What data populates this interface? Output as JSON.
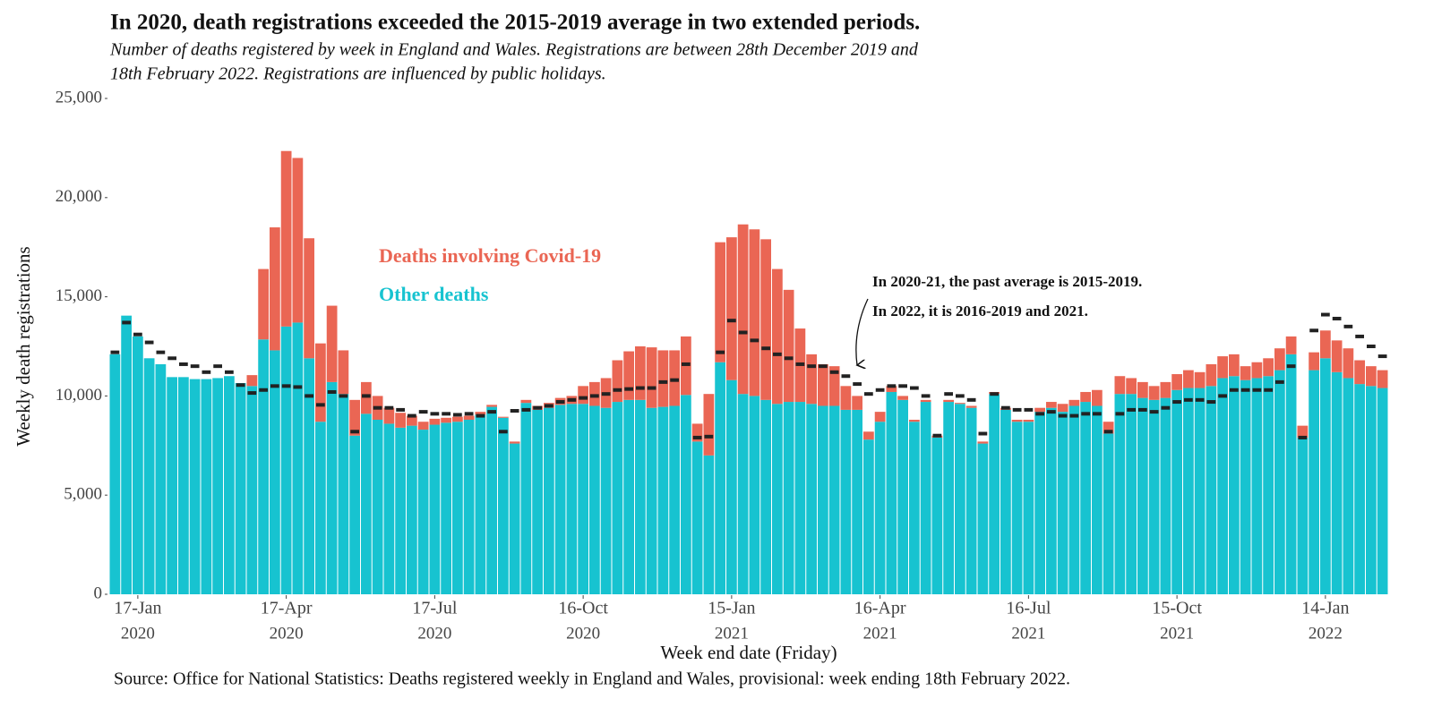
{
  "chart_data": {
    "type": "stacked-bar",
    "title": "In 2020, death registrations exceeded the 2015-2019 average in two extended periods.",
    "subtitle": [
      "Number of deaths registered by week in England and Wales. Registrations are between 28th December 2019 and",
      "18th February 2022. Registrations are influenced by public holidays."
    ],
    "y_label": "Weekly death registrations",
    "x_label": "Week end date (Friday)",
    "source": "Source: Office for National Statistics: Deaths registered weekly in England and Wales, provisional: week ending 18th February 2022.",
    "annotation": [
      "In 2020-21, the past average is 2015-2019.",
      "In 2022, it is 2016-2019 and 2021."
    ],
    "ylim": [
      0,
      25000
    ],
    "yticks": [
      0,
      {
        "value": 5000,
        "label": "5,000"
      },
      {
        "value": 10000,
        "label": "10,000"
      },
      {
        "value": 15000,
        "label": "15,000"
      },
      {
        "value": 20000,
        "label": "20,000"
      },
      {
        "value": 25000,
        "label": "25,000"
      }
    ],
    "xticks": [
      {
        "value": "2020-01-17",
        "label": [
          "17-Jan",
          "2020"
        ]
      },
      {
        "value": "2020-04-17",
        "label": [
          "17-Apr",
          "2020"
        ]
      },
      {
        "value": "2020-07-17",
        "label": [
          "17-Jul",
          "2020"
        ]
      },
      {
        "value": "2020-10-16",
        "label": [
          "16-Oct",
          "2020"
        ]
      },
      {
        "value": "2021-01-15",
        "label": [
          "15-Jan",
          "2021"
        ]
      },
      {
        "value": "2021-04-16",
        "label": [
          "16-Apr",
          "2021"
        ]
      },
      {
        "value": "2021-07-16",
        "label": [
          "16-Jul",
          "2021"
        ]
      },
      {
        "value": "2021-10-15",
        "label": [
          "15-Oct",
          "2021"
        ]
      },
      {
        "value": "2022-01-14",
        "label": [
          "14-Jan",
          "2022"
        ]
      }
    ],
    "categories": [
      "2020-01-03",
      "2020-01-10",
      "2020-01-17",
      "2020-01-24",
      "2020-01-31",
      "2020-02-07",
      "2020-02-14",
      "2020-02-21",
      "2020-02-28",
      "2020-03-06",
      "2020-03-13",
      "2020-03-20",
      "2020-03-27",
      "2020-04-03",
      "2020-04-10",
      "2020-04-17",
      "2020-04-24",
      "2020-05-01",
      "2020-05-08",
      "2020-05-15",
      "2020-05-22",
      "2020-05-29",
      "2020-06-05",
      "2020-06-12",
      "2020-06-19",
      "2020-06-26",
      "2020-07-03",
      "2020-07-10",
      "2020-07-17",
      "2020-07-24",
      "2020-07-31",
      "2020-08-07",
      "2020-08-14",
      "2020-08-21",
      "2020-08-28",
      "2020-09-04",
      "2020-09-11",
      "2020-09-18",
      "2020-09-25",
      "2020-10-02",
      "2020-10-09",
      "2020-10-16",
      "2020-10-23",
      "2020-10-30",
      "2020-11-06",
      "2020-11-13",
      "2020-11-20",
      "2020-11-27",
      "2020-12-04",
      "2020-12-11",
      "2020-12-18",
      "2020-12-25",
      "2021-01-01",
      "2021-01-08",
      "2021-01-15",
      "2021-01-22",
      "2021-01-29",
      "2021-02-05",
      "2021-02-12",
      "2021-02-19",
      "2021-02-26",
      "2021-03-05",
      "2021-03-12",
      "2021-03-19",
      "2021-03-26",
      "2021-04-02",
      "2021-04-09",
      "2021-04-16",
      "2021-04-23",
      "2021-04-30",
      "2021-05-07",
      "2021-05-14",
      "2021-05-21",
      "2021-05-28",
      "2021-06-04",
      "2021-06-11",
      "2021-06-18",
      "2021-06-25",
      "2021-07-02",
      "2021-07-09",
      "2021-07-16",
      "2021-07-23",
      "2021-07-30",
      "2021-08-06",
      "2021-08-13",
      "2021-08-20",
      "2021-08-27",
      "2021-09-03",
      "2021-09-10",
      "2021-09-17",
      "2021-09-24",
      "2021-10-01",
      "2021-10-08",
      "2021-10-15",
      "2021-10-22",
      "2021-10-29",
      "2021-11-05",
      "2021-11-12",
      "2021-11-19",
      "2021-11-26",
      "2021-12-03",
      "2021-12-10",
      "2021-12-17",
      "2021-12-24",
      "2021-12-31",
      "2022-01-07",
      "2022-01-14",
      "2022-01-21",
      "2022-01-28",
      "2022-02-04",
      "2022-02-11",
      "2022-02-18"
    ],
    "series": [
      {
        "name": "Other deaths",
        "color": "#17c3d0",
        "values": [
          12100,
          14050,
          13000,
          11900,
          11600,
          10950,
          10950,
          10850,
          10850,
          10900,
          11000,
          10650,
          10500,
          12850,
          12300,
          13500,
          13700,
          11900,
          8700,
          10700,
          10100,
          8000,
          9100,
          8800,
          8600,
          8400,
          8500,
          8300,
          8550,
          8650,
          8700,
          8800,
          9050,
          9450,
          8900,
          7600,
          9650,
          9300,
          9400,
          9550,
          9600,
          9600,
          9500,
          9400,
          9700,
          9800,
          9800,
          9400,
          9450,
          9500,
          10050,
          7700,
          7000,
          11700,
          10800,
          10100,
          10000,
          9800,
          9600,
          9700,
          9700,
          9600,
          9500,
          9500,
          9300,
          9300,
          7800,
          8700,
          10200,
          9800,
          8700,
          9700,
          7900,
          9700,
          9600,
          9400,
          7600,
          10100,
          9300,
          8700,
          8700,
          9200,
          9400,
          9200,
          9500,
          9700,
          9500,
          8100,
          10100,
          10100,
          9900,
          9800,
          9900,
          10300,
          10400,
          10400,
          10500,
          10900,
          11000,
          10800,
          10900,
          11000,
          11300,
          12100,
          7900,
          11300,
          11900,
          11200,
          10900,
          10600,
          10500,
          10400
        ]
      },
      {
        "name": "Deaths involving Covid-19",
        "color": "#ea6654",
        "values": [
          0,
          0,
          0,
          0,
          0,
          0,
          0,
          0,
          0,
          0,
          0,
          0,
          550,
          3550,
          6200,
          8850,
          8300,
          6050,
          3950,
          3850,
          2200,
          1800,
          1600,
          1200,
          800,
          750,
          500,
          400,
          300,
          250,
          250,
          200,
          150,
          100,
          50,
          100,
          150,
          200,
          250,
          350,
          400,
          900,
          1200,
          1500,
          2100,
          2450,
          2700,
          3050,
          2850,
          2800,
          2950,
          900,
          3100,
          6050,
          7200,
          8550,
          8400,
          8100,
          6800,
          5650,
          3700,
          2500,
          2100,
          2000,
          1200,
          700,
          400,
          500,
          300,
          200,
          100,
          100,
          100,
          100,
          50,
          100,
          100,
          100,
          100,
          100,
          100,
          200,
          300,
          400,
          300,
          500,
          800,
          600,
          900,
          800,
          800,
          700,
          800,
          800,
          900,
          800,
          1100,
          1100,
          1100,
          700,
          800,
          900,
          1100,
          900,
          600,
          900,
          1400,
          1600,
          1500,
          1200,
          1000,
          900
        ]
      }
    ],
    "average_color": "#222222",
    "average_values": [
      12200,
      13700,
      13100,
      12700,
      12200,
      11900,
      11600,
      11500,
      11200,
      11500,
      11200,
      10550,
      10150,
      10300,
      10500,
      10500,
      10450,
      10000,
      9550,
      10200,
      10000,
      8200,
      10000,
      9400,
      9400,
      9300,
      9000,
      9200,
      9100,
      9100,
      9050,
      9100,
      9000,
      9200,
      8200,
      9250,
      9300,
      9400,
      9500,
      9700,
      9800,
      9900,
      10000,
      10100,
      10300,
      10350,
      10400,
      10400,
      10700,
      10800,
      11600,
      7900,
      7950,
      12200,
      13800,
      13200,
      12800,
      12400,
      12100,
      11900,
      11600,
      11500,
      11500,
      11200,
      11000,
      10600,
      10100,
      10300,
      10500,
      10500,
      10400,
      10000,
      8000,
      10100,
      10000,
      9800,
      8100,
      10100,
      9400,
      9300,
      9300,
      9100,
      9200,
      9000,
      9000,
      9100,
      9100,
      8200,
      9100,
      9300,
      9300,
      9200,
      9400,
      9700,
      9800,
      9800,
      9700,
      10000,
      10300,
      10300,
      10300,
      10300,
      10700,
      11500,
      7900,
      13300,
      14100,
      13900,
      13500,
      13000,
      12500,
      12000
    ]
  }
}
